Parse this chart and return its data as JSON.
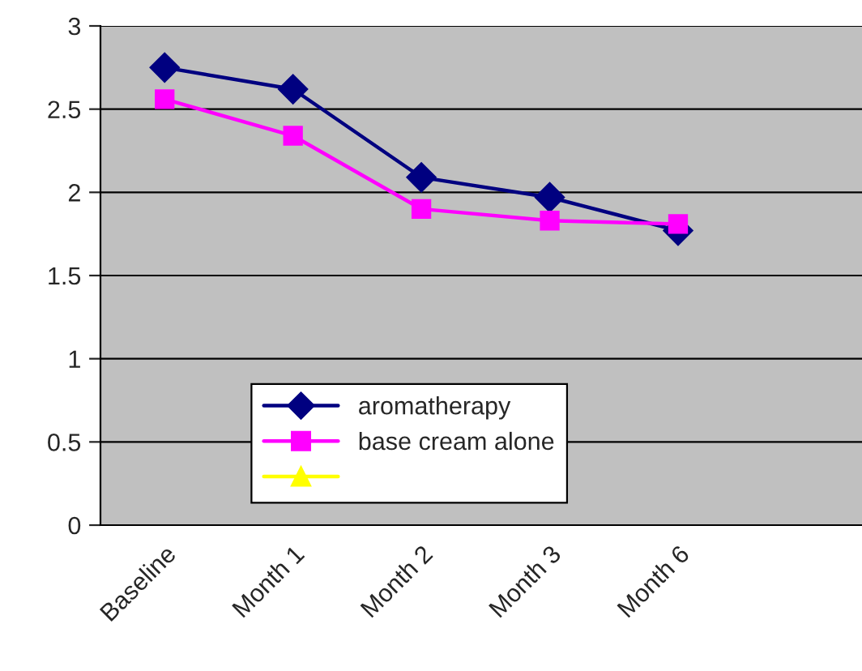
{
  "chart_data": {
    "type": "line",
    "categories": [
      "Baseline",
      "Month 1",
      "Month 2",
      "Month 3",
      "Month 6",
      null
    ],
    "series": [
      {
        "name": "aromatherapy",
        "color": "#000080",
        "marker": "diamond",
        "values": [
          2.75,
          2.62,
          2.09,
          1.97,
          1.77,
          null
        ]
      },
      {
        "name": "base cream alone",
        "color": "#ff00ff",
        "marker": "square",
        "values": [
          2.56,
          2.34,
          1.9,
          1.83,
          1.81,
          null
        ]
      },
      {
        "color": "#ffff00",
        "marker": "triangle",
        "values": [
          null,
          null,
          null,
          null,
          null,
          null
        ]
      }
    ],
    "ylim": [
      0,
      3
    ],
    "yticks": [
      0,
      0.5,
      1,
      1.5,
      2,
      2.5,
      3
    ],
    "grid": "y",
    "legend": "bottom left",
    "line_style": "solid"
  }
}
